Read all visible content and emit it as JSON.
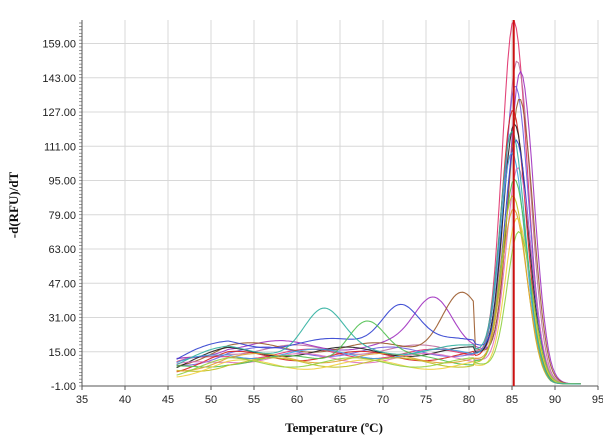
{
  "chart_data": {
    "type": "line",
    "title": "",
    "xlabel": "Temperature (ºC)",
    "ylabel": "-d(RFU)/dT",
    "xlim": [
      35,
      95
    ],
    "ylim": [
      -1,
      170
    ],
    "x_ticks": [
      35,
      40,
      45,
      50,
      55,
      60,
      65,
      70,
      75,
      80,
      85,
      90,
      95
    ],
    "x_tick_labels": [
      "35",
      "40",
      "45",
      "50",
      "55",
      "60",
      "65",
      "70",
      "75",
      "80",
      "85",
      "90",
      "95"
    ],
    "y_ticks": [
      -1,
      15,
      31,
      47,
      63,
      79,
      95,
      111,
      127,
      143,
      159
    ],
    "y_tick_labels": [
      "-1.00",
      "15.00",
      "31.00",
      "47.00",
      "63.00",
      "79.00",
      "95.00",
      "111.00",
      "127.00",
      "143.00",
      "159.00"
    ],
    "grid": true,
    "legend": "none",
    "marker_line": {
      "x": 85.2,
      "color": "#cc1010"
    },
    "curve_params": {
      "x_start": 46,
      "x_end": 93,
      "plateau_end_x": 80.5,
      "tail_y": 0
    },
    "series": [
      {
        "color": "#e0306a",
        "peak_x": 85.2,
        "peak_y": 170,
        "base_y": 14,
        "bump_x": 0,
        "bump_y": 0
      },
      {
        "color": "#c070a0",
        "peak_x": 85.6,
        "peak_y": 152,
        "base_y": 16,
        "bump_x": 0,
        "bump_y": 0
      },
      {
        "color": "#a030c0",
        "peak_x": 86.0,
        "peak_y": 148,
        "base_y": 18,
        "bump_x": 76,
        "bump_y": 26
      },
      {
        "color": "#7060e0",
        "peak_x": 85.4,
        "peak_y": 140,
        "base_y": 15,
        "bump_x": 0,
        "bump_y": 0
      },
      {
        "color": "#9b5a2b",
        "peak_x": 85.9,
        "peak_y": 135,
        "base_y": 17,
        "bump_x": 79,
        "bump_y": 30
      },
      {
        "color": "#d62020",
        "peak_x": 85.1,
        "peak_y": 128,
        "base_y": 13,
        "bump_x": 0,
        "bump_y": 0
      },
      {
        "color": "#202020",
        "peak_x": 85.3,
        "peak_y": 122,
        "base_y": 15,
        "bump_x": 0,
        "bump_y": 0
      },
      {
        "color": "#3040d0",
        "peak_x": 85.5,
        "peak_y": 115,
        "base_y": 19,
        "bump_x": 72,
        "bump_y": 24
      },
      {
        "color": "#40a0e0",
        "peak_x": 85.0,
        "peak_y": 108,
        "base_y": 14,
        "bump_x": 0,
        "bump_y": 0
      },
      {
        "color": "#e070c0",
        "peak_x": 85.7,
        "peak_y": 102,
        "base_y": 12,
        "bump_x": 0,
        "bump_y": 0
      },
      {
        "color": "#50c050",
        "peak_x": 85.3,
        "peak_y": 96,
        "base_y": 11,
        "bump_x": 68,
        "bump_y": 22
      },
      {
        "color": "#c0c020",
        "peak_x": 85.1,
        "peak_y": 88,
        "base_y": 10,
        "bump_x": 0,
        "bump_y": 0
      },
      {
        "color": "#e0a030",
        "peak_x": 85.2,
        "peak_y": 82,
        "base_y": 12,
        "bump_x": 0,
        "bump_y": 0
      },
      {
        "color": "#f0d040",
        "peak_x": 85.6,
        "peak_y": 78,
        "base_y": 9,
        "bump_x": 0,
        "bump_y": 0
      },
      {
        "color": "#90d040",
        "peak_x": 85.8,
        "peak_y": 72,
        "base_y": 10,
        "bump_x": 0,
        "bump_y": 0
      },
      {
        "color": "#30b0a0",
        "peak_x": 85.0,
        "peak_y": 118,
        "base_y": 16,
        "bump_x": 63,
        "bump_y": 21
      }
    ]
  }
}
